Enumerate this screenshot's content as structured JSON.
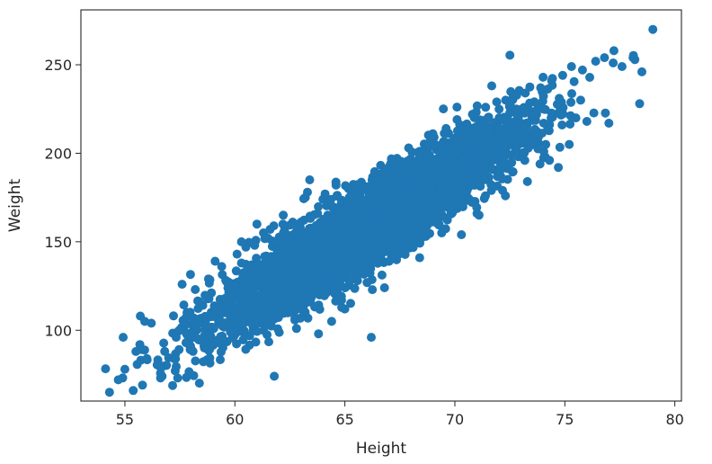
{
  "chart_data": {
    "type": "scatter",
    "xlabel": "Height",
    "ylabel": "Weight",
    "xlim": [
      53,
      80.3
    ],
    "ylim": [
      60,
      281
    ],
    "x_ticks": [
      55,
      60,
      65,
      70,
      75,
      80
    ],
    "y_ticks": [
      100,
      150,
      200,
      250
    ],
    "grid": false,
    "legend": "none",
    "marker_color": "#1f77b4",
    "trend": {
      "slope": 7.7,
      "intercept": -350
    },
    "series": [
      {
        "points": [
          [
            54.3,
            65
          ],
          [
            54.7,
            72
          ],
          [
            55.0,
            78
          ],
          [
            55.5,
            88
          ],
          [
            55.8,
            69
          ],
          [
            56.0,
            84
          ],
          [
            55.7,
            108
          ],
          [
            55.9,
            105
          ],
          [
            56.2,
            104
          ],
          [
            56.6,
            80
          ],
          [
            57.4,
            73
          ],
          [
            57.6,
            126
          ],
          [
            58.2,
            123
          ],
          [
            58.8,
            129
          ],
          [
            59.1,
            139
          ],
          [
            59.4,
            136
          ],
          [
            59.6,
            128
          ],
          [
            60.1,
            143
          ],
          [
            60.3,
            138
          ],
          [
            60.5,
            147
          ],
          [
            60.9,
            148
          ],
          [
            61.3,
            155
          ],
          [
            61.5,
            152
          ],
          [
            62.2,
            165
          ],
          [
            62.9,
            160
          ],
          [
            63.3,
            178
          ],
          [
            63.4,
            185
          ],
          [
            64.1,
            177
          ],
          [
            64.6,
            182
          ],
          [
            65.2,
            175
          ],
          [
            66.0,
            180
          ],
          [
            66.2,
            96
          ],
          [
            67.2,
            195
          ],
          [
            67.9,
            203
          ],
          [
            68.4,
            199
          ],
          [
            69.0,
            211
          ],
          [
            69.6,
            214
          ],
          [
            70.1,
            219
          ],
          [
            70.8,
            222
          ],
          [
            71.4,
            226
          ],
          [
            71.9,
            229
          ],
          [
            72.5,
            227
          ],
          [
            73.2,
            234
          ],
          [
            73.9,
            237
          ],
          [
            74.4,
            241
          ],
          [
            74.9,
            244
          ],
          [
            75.3,
            249
          ],
          [
            75.8,
            247
          ],
          [
            76.4,
            252
          ],
          [
            76.8,
            254
          ],
          [
            77.2,
            251
          ],
          [
            77.6,
            249
          ],
          [
            78.1,
            254
          ],
          [
            78.5,
            246
          ],
          [
            78.4,
            228
          ],
          [
            79.0,
            270
          ],
          [
            62.8,
            101
          ],
          [
            63.8,
            98
          ],
          [
            64.4,
            105
          ],
          [
            65.0,
            112
          ],
          [
            66.8,
            124
          ],
          [
            68.4,
            141
          ],
          [
            69.4,
            155
          ],
          [
            70.3,
            154
          ],
          [
            71.1,
            165
          ],
          [
            72.3,
            176
          ],
          [
            73.3,
            184
          ],
          [
            74.3,
            196
          ],
          [
            75.2,
            205
          ],
          [
            76.0,
            218
          ],
          [
            77.0,
            217
          ],
          [
            63.2,
            175
          ],
          [
            64.0,
            174
          ],
          [
            60.3,
            150
          ],
          [
            61.0,
            160
          ],
          [
            61.6,
            157
          ]
        ]
      }
    ]
  }
}
